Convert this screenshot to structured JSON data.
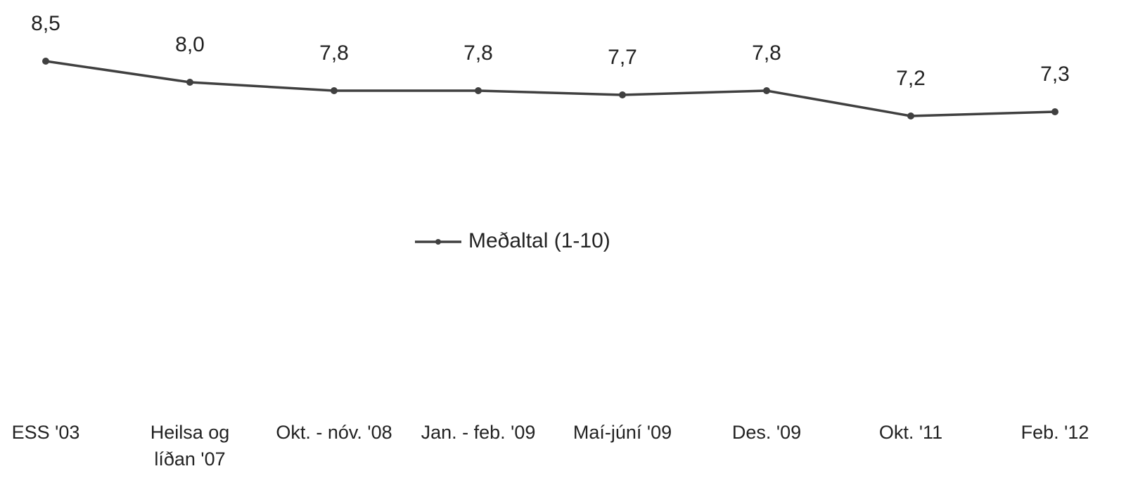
{
  "chart_data": {
    "type": "line",
    "categories": [
      "ESS '03",
      "Heilsa og líðan '07",
      "Okt. - nóv. '08",
      "Jan. - feb. '09",
      "Maí-júní '09",
      "Des. '09",
      "Okt. '11",
      "Feb. '12"
    ],
    "series": [
      {
        "name": "Meðaltal (1-10)",
        "color": "#404040",
        "values": [
          8.5,
          8.0,
          7.8,
          7.8,
          7.7,
          7.8,
          7.2,
          7.3
        ],
        "value_labels": [
          "8,5",
          "8,0",
          "7,8",
          "7,8",
          "7,7",
          "7,8",
          "7,2",
          "7,3"
        ]
      }
    ],
    "legend": "center"
  }
}
